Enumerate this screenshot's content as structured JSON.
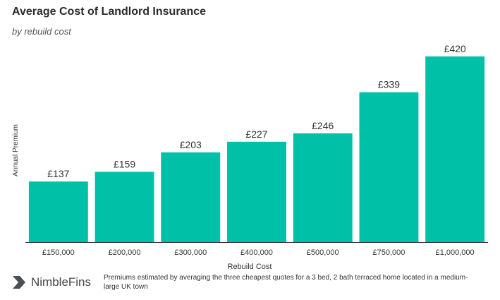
{
  "page": {
    "title": "Average Cost of Landlord Insurance",
    "subtitle": "by rebuild cost"
  },
  "brand": {
    "name": "NimbleFins",
    "logo_icon": "nimblefins-logo-icon"
  },
  "footnote": "Premiums estimated by averaging the three cheapest quotes for a 3 bed, 2 bath terraced home located in a medium-large UK town",
  "colors": {
    "bar": "#00c1a7",
    "axis": "#333333",
    "text": "#333333"
  },
  "chart_data": {
    "type": "bar",
    "title": "Average Cost of Landlord Insurance",
    "subtitle": "by rebuild cost",
    "xlabel": "Rebuild Cost",
    "ylabel": "Annual Premium",
    "categories": [
      "£150,000",
      "£200,000",
      "£300,000",
      "£400,000",
      "£500,000",
      "£750,000",
      "£1,000,000"
    ],
    "values": [
      137,
      159,
      203,
      227,
      246,
      339,
      420
    ],
    "data_labels": [
      "£137",
      "£159",
      "£203",
      "£227",
      "£246",
      "£339",
      "£420"
    ],
    "ylim": [
      0,
      455
    ],
    "grid": false,
    "legend": "none"
  }
}
